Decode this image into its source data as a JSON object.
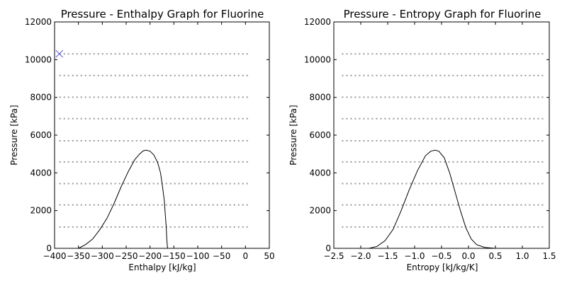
{
  "chart_data": [
    {
      "type": "line",
      "title": "Pressure - Enthalpy Graph for Fluorine",
      "xlabel": "Enthalpy [kJ/kg]",
      "ylabel": "Pressure [kPa]",
      "xlim": [
        -400,
        50
      ],
      "ylim": [
        0,
        12000
      ],
      "xticks": [
        -400,
        -350,
        -300,
        -250,
        -200,
        -150,
        -100,
        -50,
        0,
        50
      ],
      "xtick_labels": [
        "−400",
        "−350",
        "−300",
        "−250",
        "−200",
        "−150",
        "−100",
        "−50",
        "0",
        "50"
      ],
      "yticks": [
        0,
        2000,
        4000,
        6000,
        8000,
        10000,
        12000
      ],
      "ytick_labels": [
        "0",
        "2000",
        "4000",
        "6000",
        "8000",
        "10000",
        "12000"
      ],
      "grid": false,
      "isobar_pressures": [
        1130,
        2300,
        3430,
        4580,
        5700,
        6870,
        8010,
        9160,
        10310
      ],
      "isobar_x_range": [
        -390,
        10
      ],
      "saturation_dome": {
        "x": [
          -350,
          -335,
          -320,
          -305,
          -290,
          -275,
          -260,
          -245,
          -232,
          -222,
          -214,
          -208,
          -200,
          -192,
          -184,
          -178,
          -174,
          -170,
          -168,
          -166,
          -165,
          -164,
          -163.5,
          -163
        ],
        "y": [
          0,
          200,
          500,
          1000,
          1600,
          2400,
          3300,
          4100,
          4700,
          5000,
          5170,
          5200,
          5150,
          4950,
          4550,
          4000,
          3300,
          2500,
          1800,
          1100,
          600,
          200,
          80,
          0
        ]
      },
      "state_marker": {
        "x": -390,
        "y": 10310,
        "marker": "x",
        "color": "#4a4ad8"
      }
    },
    {
      "type": "line",
      "title": "Pressure - Entropy Graph for Fluorine",
      "xlabel": "Entropy [kJ/kg/K]",
      "ylabel": "Pressure [kPa]",
      "xlim": [
        -2.5,
        1.5
      ],
      "ylim": [
        0,
        12000
      ],
      "xticks": [
        -2.5,
        -2.0,
        -1.5,
        -1.0,
        -0.5,
        0.0,
        0.5,
        1.0,
        1.5
      ],
      "xtick_labels": [
        "−2.5",
        "−2.0",
        "−1.5",
        "−1.0",
        "−0.5",
        "0.0",
        "0.5",
        "1.0",
        "1.5"
      ],
      "yticks": [
        0,
        2000,
        4000,
        6000,
        8000,
        10000,
        12000
      ],
      "ytick_labels": [
        "0",
        "2000",
        "4000",
        "6000",
        "8000",
        "10000",
        "12000"
      ],
      "grid": false,
      "isobar_pressures": [
        1130,
        2300,
        3430,
        4580,
        5700,
        6870,
        8010,
        9160,
        10310
      ],
      "isobar_x_range": [
        -2.35,
        1.4
      ],
      "saturation_dome": {
        "x": [
          -1.85,
          -1.7,
          -1.55,
          -1.4,
          -1.25,
          -1.1,
          -0.95,
          -0.8,
          -0.7,
          -0.62,
          -0.55,
          -0.45,
          -0.35,
          -0.25,
          -0.15,
          -0.05,
          0.05,
          0.15,
          0.3,
          0.5
        ],
        "y": [
          0,
          100,
          400,
          1000,
          2000,
          3100,
          4100,
          4900,
          5150,
          5200,
          5150,
          4800,
          4000,
          3000,
          2000,
          1100,
          500,
          200,
          50,
          0
        ]
      }
    }
  ]
}
